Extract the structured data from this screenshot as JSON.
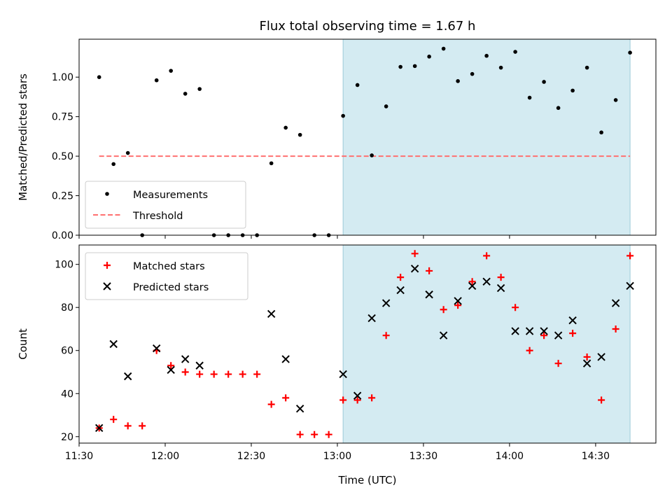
{
  "chart_data": {
    "type": "scatter",
    "title": "Flux total observing time = 1.67 h",
    "xlabel": "Time (UTC)",
    "x_tick_labels": [
      "11:30",
      "12:00",
      "12:30",
      "13:00",
      "13:30",
      "14:00",
      "14:30"
    ],
    "x_ticks": [
      "11:30",
      "12:00",
      "12:30",
      "13:00",
      "13:30",
      "14:00",
      "14:30"
    ],
    "xlim": [
      "11:30",
      "14:51"
    ],
    "shaded_interval": {
      "start": "13:02",
      "end": "14:42",
      "color": "#add8e6"
    },
    "panels": [
      {
        "ylabel": "Matched/Predicted stars",
        "ylim": [
          0,
          1.24
        ],
        "y_ticks": [
          "0.00",
          "0.25",
          "0.50",
          "0.75",
          "1.00"
        ],
        "legend_position": "lower-left",
        "series": [
          {
            "name": "Measurements",
            "marker": "dot",
            "color": "#000000",
            "x": [
              "11:37",
              "11:42",
              "11:47",
              "11:52",
              "11:57",
              "12:02",
              "12:07",
              "12:12",
              "12:17",
              "12:22",
              "12:27",
              "12:32",
              "12:37",
              "12:42",
              "12:47",
              "12:52",
              "12:57",
              "13:02",
              "13:07",
              "13:12",
              "13:17",
              "13:22",
              "13:27",
              "13:32",
              "13:37",
              "13:42",
              "13:47",
              "13:52",
              "13:57",
              "14:02",
              "14:07",
              "14:12",
              "14:17",
              "14:22",
              "14:27",
              "14:32",
              "14:37",
              "14:42"
            ],
            "y": [
              1.0,
              0.45,
              0.52,
              0.0,
              0.98,
              1.04,
              0.895,
              0.925,
              0.0,
              0.0,
              0.0,
              0.0,
              0.455,
              0.68,
              0.635,
              0.0,
              0.0,
              0.755,
              0.95,
              0.505,
              0.815,
              1.065,
              1.07,
              1.13,
              1.18,
              0.975,
              1.02,
              1.135,
              1.06,
              1.16,
              0.87,
              0.97,
              0.805,
              0.915,
              1.06,
              0.65,
              0.855,
              1.155
            ]
          },
          {
            "name": "Threshold",
            "style": "dashed",
            "color": "#ff7070",
            "x": [
              "11:37",
              "14:42"
            ],
            "y": [
              0.5,
              0.5
            ]
          }
        ]
      },
      {
        "ylabel": "Count",
        "ylim": [
          17,
          109
        ],
        "y_ticks": [
          "20",
          "40",
          "60",
          "80",
          "100"
        ],
        "legend_position": "top-left",
        "series": [
          {
            "name": "Matched stars",
            "marker": "plus",
            "color": "#ff0000",
            "x": [
              "11:37",
              "11:42",
              "11:47",
              "11:52",
              "11:57",
              "12:02",
              "12:07",
              "12:12",
              "12:17",
              "12:22",
              "12:27",
              "12:32",
              "12:37",
              "12:42",
              "12:47",
              "12:52",
              "12:57",
              "13:02",
              "13:07",
              "13:12",
              "13:17",
              "13:22",
              "13:27",
              "13:32",
              "13:37",
              "13:42",
              "13:47",
              "13:52",
              "13:57",
              "14:02",
              "14:07",
              "14:12",
              "14:17",
              "14:22",
              "14:27",
              "14:32",
              "14:37",
              "14:42"
            ],
            "y": [
              24,
              28,
              25,
              25,
              60,
              53,
              50,
              49,
              49,
              49,
              49,
              49,
              35,
              38,
              21,
              21,
              21,
              37,
              37,
              38,
              67,
              94,
              105,
              97,
              79,
              81,
              92,
              104,
              94,
              80,
              60,
              67,
              54,
              68,
              57,
              37,
              70,
              104
            ]
          },
          {
            "name": "Predicted stars",
            "marker": "x",
            "color": "#000000",
            "x": [
              "11:37",
              "11:42",
              "11:47",
              "11:57",
              "12:02",
              "12:07",
              "12:12",
              "12:37",
              "12:42",
              "12:47",
              "13:02",
              "13:07",
              "13:12",
              "13:17",
              "13:22",
              "13:27",
              "13:32",
              "13:37",
              "13:42",
              "13:47",
              "13:52",
              "13:57",
              "14:02",
              "14:07",
              "14:12",
              "14:17",
              "14:22",
              "14:27",
              "14:32",
              "14:37",
              "14:42"
            ],
            "y": [
              24,
              63,
              48,
              61,
              51,
              56,
              53,
              77,
              56,
              33,
              49,
              39,
              75,
              82,
              88,
              98,
              86,
              67,
              83,
              90,
              92,
              89,
              69,
              69,
              69,
              67,
              74,
              54,
              57,
              82,
              90
            ]
          }
        ]
      }
    ]
  }
}
